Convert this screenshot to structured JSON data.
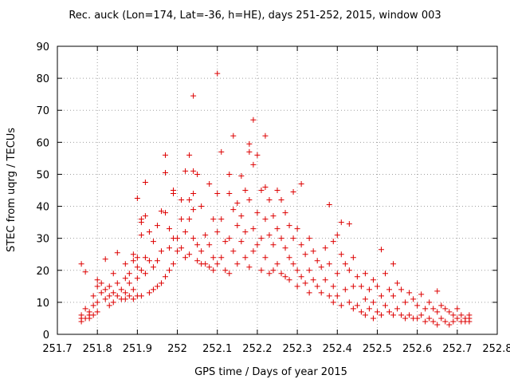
{
  "chart_data": {
    "type": "scatter",
    "title": "Rec. auck (Lon=174, Lat=-36, h=HE), days 251-252, 2015, window 003",
    "xlabel": "GPS time / Days of year 2015",
    "ylabel": "STEC from uqrg / TECUs",
    "xlim": [
      251.7,
      252.8
    ],
    "ylim": [
      0,
      90
    ],
    "xticks": [
      "251.7",
      "251.8",
      "251.9",
      "252",
      "252.1",
      "252.2",
      "252.3",
      "252.4",
      "252.5",
      "252.6",
      "252.7",
      "252.8"
    ],
    "yticks": [
      "0",
      "10",
      "20",
      "30",
      "40",
      "50",
      "60",
      "70",
      "80",
      "90"
    ],
    "grid": true,
    "marker": "plus",
    "color": "#dd0000",
    "series": [
      {
        "points": [
          [
            251.76,
            22
          ],
          [
            251.77,
            19.5
          ],
          [
            251.76,
            4
          ],
          [
            251.76,
            5
          ],
          [
            251.76,
            6
          ],
          [
            251.77,
            5
          ],
          [
            251.77,
            8
          ],
          [
            251.78,
            5
          ],
          [
            251.78,
            6
          ],
          [
            251.78,
            7
          ],
          [
            251.79,
            6
          ],
          [
            251.79,
            9
          ],
          [
            251.79,
            12
          ],
          [
            251.8,
            7
          ],
          [
            251.8,
            10
          ],
          [
            251.8,
            15
          ],
          [
            251.8,
            17
          ],
          [
            251.81,
            13
          ],
          [
            251.81,
            16
          ],
          [
            251.82,
            11
          ],
          [
            251.82,
            14
          ],
          [
            251.82,
            23.5
          ],
          [
            251.83,
            9
          ],
          [
            251.83,
            12
          ],
          [
            251.83,
            15
          ],
          [
            251.84,
            10
          ],
          [
            251.84,
            13
          ],
          [
            251.84,
            19
          ],
          [
            251.85,
            12
          ],
          [
            251.85,
            16
          ],
          [
            251.85,
            25.5
          ],
          [
            251.86,
            11
          ],
          [
            251.86,
            14
          ],
          [
            251.87,
            11
          ],
          [
            251.87,
            13
          ],
          [
            251.87,
            17.5
          ],
          [
            251.87,
            22
          ],
          [
            251.88,
            12
          ],
          [
            251.88,
            16
          ],
          [
            251.88,
            19
          ],
          [
            251.89,
            11
          ],
          [
            251.89,
            14
          ],
          [
            251.89,
            25
          ],
          [
            251.89,
            23
          ],
          [
            251.9,
            12
          ],
          [
            251.9,
            17.5
          ],
          [
            251.9,
            21
          ],
          [
            251.9,
            24
          ],
          [
            251.9,
            42.5
          ],
          [
            251.91,
            35
          ],
          [
            251.91,
            36
          ],
          [
            251.91,
            31
          ],
          [
            251.91,
            20
          ],
          [
            251.91,
            12
          ],
          [
            251.92,
            47.5
          ],
          [
            251.92,
            37
          ],
          [
            251.92,
            24
          ],
          [
            251.92,
            19
          ],
          [
            251.93,
            13
          ],
          [
            251.93,
            23
          ],
          [
            251.93,
            32
          ],
          [
            251.94,
            14
          ],
          [
            251.94,
            21
          ],
          [
            251.94,
            29
          ],
          [
            251.95,
            15
          ],
          [
            251.95,
            23
          ],
          [
            251.95,
            34
          ],
          [
            251.96,
            16
          ],
          [
            251.96,
            26
          ],
          [
            251.96,
            38.5
          ],
          [
            251.97,
            56
          ],
          [
            251.97,
            50.5
          ],
          [
            251.97,
            38
          ],
          [
            251.97,
            18
          ],
          [
            251.98,
            20
          ],
          [
            251.98,
            27
          ],
          [
            251.98,
            33
          ],
          [
            251.99,
            44
          ],
          [
            251.99,
            45
          ],
          [
            251.99,
            30
          ],
          [
            251.99,
            22
          ],
          [
            252.0,
            26
          ],
          [
            252.0,
            30
          ],
          [
            252.01,
            27
          ],
          [
            252.01,
            36
          ],
          [
            252.01,
            42
          ],
          [
            252.02,
            51
          ],
          [
            252.02,
            32
          ],
          [
            252.02,
            24
          ],
          [
            252.03,
            56
          ],
          [
            252.03,
            42
          ],
          [
            252.03,
            36
          ],
          [
            252.03,
            25
          ],
          [
            252.04,
            74.5
          ],
          [
            252.04,
            51
          ],
          [
            252.04,
            44
          ],
          [
            252.04,
            39
          ],
          [
            252.04,
            30
          ],
          [
            252.05,
            50
          ],
          [
            252.05,
            28
          ],
          [
            252.05,
            23
          ],
          [
            252.06,
            40
          ],
          [
            252.06,
            26
          ],
          [
            252.06,
            22
          ],
          [
            252.07,
            31
          ],
          [
            252.07,
            22
          ],
          [
            252.08,
            47
          ],
          [
            252.08,
            28
          ],
          [
            252.08,
            21
          ],
          [
            252.09,
            36
          ],
          [
            252.09,
            24
          ],
          [
            252.09,
            20
          ],
          [
            252.1,
            81.5
          ],
          [
            252.1,
            44
          ],
          [
            252.1,
            32
          ],
          [
            252.1,
            22
          ],
          [
            252.11,
            57
          ],
          [
            252.11,
            36
          ],
          [
            252.11,
            24
          ],
          [
            252.12,
            29
          ],
          [
            252.12,
            20
          ],
          [
            252.13,
            50
          ],
          [
            252.13,
            44
          ],
          [
            252.13,
            30
          ],
          [
            252.13,
            19
          ],
          [
            252.14,
            62
          ],
          [
            252.14,
            39
          ],
          [
            252.14,
            26
          ],
          [
            252.15,
            41
          ],
          [
            252.15,
            34
          ],
          [
            252.15,
            22
          ],
          [
            252.16,
            49.5
          ],
          [
            252.16,
            37
          ],
          [
            252.16,
            29
          ],
          [
            252.17,
            45
          ],
          [
            252.17,
            32
          ],
          [
            252.17,
            24
          ],
          [
            252.18,
            59.5
          ],
          [
            252.18,
            57
          ],
          [
            252.18,
            42
          ],
          [
            252.18,
            21
          ],
          [
            252.19,
            67
          ],
          [
            252.19,
            53
          ],
          [
            252.19,
            33
          ],
          [
            252.19,
            26
          ],
          [
            252.2,
            56
          ],
          [
            252.2,
            38
          ],
          [
            252.2,
            28
          ],
          [
            252.21,
            45
          ],
          [
            252.21,
            30
          ],
          [
            252.21,
            20
          ],
          [
            252.22,
            62
          ],
          [
            252.22,
            46
          ],
          [
            252.22,
            36
          ],
          [
            252.22,
            24
          ],
          [
            252.23,
            42
          ],
          [
            252.23,
            31
          ],
          [
            252.23,
            19
          ],
          [
            252.24,
            37
          ],
          [
            252.24,
            28
          ],
          [
            252.24,
            20
          ],
          [
            252.25,
            45
          ],
          [
            252.25,
            33
          ],
          [
            252.25,
            22
          ],
          [
            252.26,
            42
          ],
          [
            252.26,
            30
          ],
          [
            252.26,
            19
          ],
          [
            252.27,
            38
          ],
          [
            252.27,
            27
          ],
          [
            252.27,
            18
          ],
          [
            252.28,
            34
          ],
          [
            252.28,
            24
          ],
          [
            252.28,
            17
          ],
          [
            252.29,
            44.5
          ],
          [
            252.29,
            30
          ],
          [
            252.29,
            22
          ],
          [
            252.3,
            33
          ],
          [
            252.3,
            20
          ],
          [
            252.3,
            15
          ],
          [
            252.31,
            47
          ],
          [
            252.31,
            28
          ],
          [
            252.31,
            18
          ],
          [
            252.32,
            25
          ],
          [
            252.32,
            16
          ],
          [
            252.33,
            30
          ],
          [
            252.33,
            20
          ],
          [
            252.33,
            13
          ],
          [
            252.34,
            26
          ],
          [
            252.34,
            17
          ],
          [
            252.35,
            23
          ],
          [
            252.35,
            15
          ],
          [
            252.36,
            21
          ],
          [
            252.36,
            13
          ],
          [
            252.37,
            27
          ],
          [
            252.37,
            17
          ],
          [
            252.38,
            40.5
          ],
          [
            252.38,
            22
          ],
          [
            252.38,
            12
          ],
          [
            252.39,
            29
          ],
          [
            252.39,
            15
          ],
          [
            252.39,
            10
          ],
          [
            252.4,
            31
          ],
          [
            252.4,
            19
          ],
          [
            252.4,
            12
          ],
          [
            252.41,
            35
          ],
          [
            252.41,
            25
          ],
          [
            252.41,
            9
          ],
          [
            252.42,
            22
          ],
          [
            252.42,
            14
          ],
          [
            252.43,
            34.5
          ],
          [
            252.43,
            20
          ],
          [
            252.43,
            10
          ],
          [
            252.44,
            24
          ],
          [
            252.44,
            15
          ],
          [
            252.44,
            8
          ],
          [
            252.45,
            18
          ],
          [
            252.45,
            9
          ],
          [
            252.46,
            15
          ],
          [
            252.46,
            7
          ],
          [
            252.47,
            19
          ],
          [
            252.47,
            11
          ],
          [
            252.47,
            6
          ],
          [
            252.48,
            14
          ],
          [
            252.48,
            8
          ],
          [
            252.49,
            17
          ],
          [
            252.49,
            10
          ],
          [
            252.49,
            5
          ],
          [
            252.5,
            15
          ],
          [
            252.5,
            7
          ],
          [
            252.51,
            26.5
          ],
          [
            252.51,
            12
          ],
          [
            252.51,
            6
          ],
          [
            252.52,
            19
          ],
          [
            252.52,
            9
          ],
          [
            252.53,
            14
          ],
          [
            252.53,
            7
          ],
          [
            252.54,
            22
          ],
          [
            252.54,
            12
          ],
          [
            252.54,
            6
          ],
          [
            252.55,
            16
          ],
          [
            252.55,
            8
          ],
          [
            252.56,
            14
          ],
          [
            252.56,
            6
          ],
          [
            252.57,
            10
          ],
          [
            252.57,
            5
          ],
          [
            252.58,
            13
          ],
          [
            252.58,
            6
          ],
          [
            252.59,
            11
          ],
          [
            252.59,
            5
          ],
          [
            252.6,
            9
          ],
          [
            252.6,
            5
          ],
          [
            252.61,
            12.5
          ],
          [
            252.61,
            6
          ],
          [
            252.62,
            8
          ],
          [
            252.62,
            4
          ],
          [
            252.63,
            10
          ],
          [
            252.63,
            5
          ],
          [
            252.64,
            8
          ],
          [
            252.64,
            4
          ],
          [
            252.65,
            13.5
          ],
          [
            252.65,
            7
          ],
          [
            252.65,
            3
          ],
          [
            252.66,
            9
          ],
          [
            252.66,
            5
          ],
          [
            252.67,
            8
          ],
          [
            252.67,
            4
          ],
          [
            252.68,
            7
          ],
          [
            252.68,
            3
          ],
          [
            252.69,
            6
          ],
          [
            252.69,
            4
          ],
          [
            252.7,
            8
          ],
          [
            252.7,
            5
          ],
          [
            252.71,
            4
          ],
          [
            252.71,
            6
          ],
          [
            252.72,
            5
          ],
          [
            252.72,
            4
          ],
          [
            252.73,
            4
          ],
          [
            252.73,
            5
          ],
          [
            252.73,
            6
          ]
        ]
      }
    ]
  }
}
